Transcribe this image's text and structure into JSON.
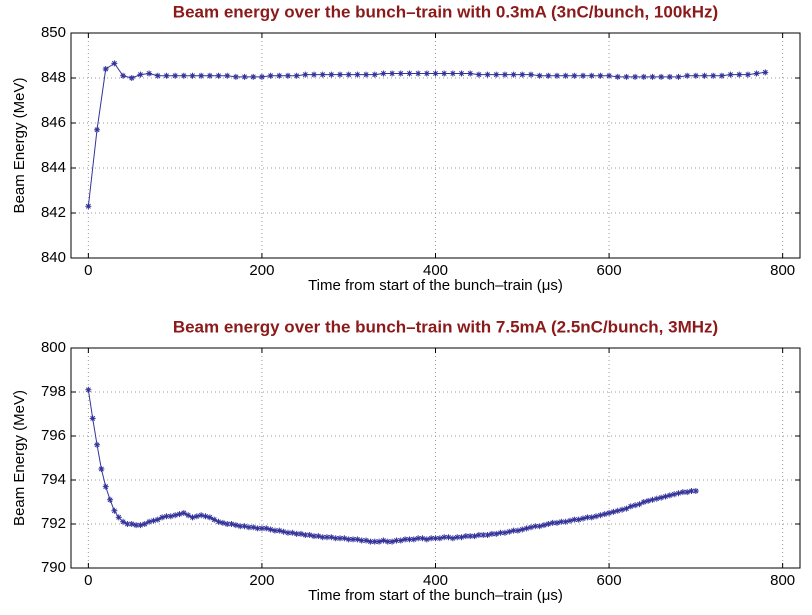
{
  "chart_data": [
    {
      "type": "line",
      "title": "Beam energy over the bunch–train with 0.3mA (3nC/bunch, 100kHz)",
      "xlabel": "Time from start of the bunch–train (μs)",
      "ylabel": "Beam Energy (MeV)",
      "xlim": [
        -20,
        820
      ],
      "xticks": [
        0,
        200,
        400,
        600,
        800
      ],
      "ylim": [
        840,
        850
      ],
      "yticks": [
        840,
        842,
        844,
        846,
        848,
        850
      ],
      "grid": true,
      "series": [
        {
          "name": "0.3mA",
          "color": "#33339a",
          "x": [
            0,
            10,
            20,
            30,
            40,
            50,
            60,
            70,
            80,
            90,
            100,
            110,
            120,
            130,
            140,
            150,
            160,
            170,
            180,
            190,
            200,
            210,
            220,
            230,
            240,
            250,
            260,
            270,
            280,
            290,
            300,
            310,
            320,
            330,
            340,
            350,
            360,
            370,
            380,
            390,
            400,
            410,
            420,
            430,
            440,
            450,
            460,
            470,
            480,
            490,
            500,
            510,
            520,
            530,
            540,
            550,
            560,
            570,
            580,
            590,
            600,
            610,
            620,
            630,
            640,
            650,
            660,
            670,
            680,
            690,
            700,
            710,
            720,
            730,
            740,
            750,
            760,
            770,
            780
          ],
          "values": [
            842.3,
            845.7,
            848.4,
            848.65,
            848.1,
            848.0,
            848.15,
            848.2,
            848.1,
            848.1,
            848.1,
            848.1,
            848.1,
            848.1,
            848.1,
            848.1,
            848.1,
            848.05,
            848.05,
            848.05,
            848.05,
            848.1,
            848.1,
            848.1,
            848.1,
            848.15,
            848.15,
            848.15,
            848.15,
            848.15,
            848.15,
            848.15,
            848.15,
            848.15,
            848.2,
            848.2,
            848.2,
            848.2,
            848.2,
            848.2,
            848.2,
            848.2,
            848.2,
            848.2,
            848.2,
            848.15,
            848.15,
            848.15,
            848.15,
            848.15,
            848.15,
            848.15,
            848.1,
            848.1,
            848.1,
            848.1,
            848.1,
            848.1,
            848.1,
            848.1,
            848.1,
            848.05,
            848.05,
            848.05,
            848.05,
            848.05,
            848.05,
            848.05,
            848.05,
            848.1,
            848.1,
            848.1,
            848.1,
            848.1,
            848.15,
            848.15,
            848.15,
            848.2,
            848.25
          ]
        }
      ]
    },
    {
      "type": "line",
      "title": "Beam energy over the bunch–train with 7.5mA (2.5nC/bunch, 3MHz)",
      "xlabel": "Time from start of the bunch–train (μs)",
      "ylabel": "Beam Energy (MeV)",
      "xlim": [
        -20,
        820
      ],
      "xticks": [
        0,
        200,
        400,
        600,
        800
      ],
      "ylim": [
        790,
        800
      ],
      "yticks": [
        790,
        792,
        794,
        796,
        798,
        800
      ],
      "grid": true,
      "series": [
        {
          "name": "7.5mA",
          "color": "#33339a",
          "x": [
            0,
            5,
            10,
            15,
            20,
            25,
            30,
            35,
            40,
            45,
            50,
            55,
            60,
            65,
            70,
            75,
            80,
            85,
            90,
            95,
            100,
            105,
            110,
            115,
            120,
            125,
            130,
            135,
            140,
            145,
            150,
            155,
            160,
            165,
            170,
            175,
            180,
            185,
            190,
            195,
            200,
            205,
            210,
            215,
            220,
            225,
            230,
            235,
            240,
            245,
            250,
            255,
            260,
            265,
            270,
            275,
            280,
            285,
            290,
            295,
            300,
            305,
            310,
            315,
            320,
            325,
            330,
            335,
            340,
            345,
            350,
            355,
            360,
            365,
            370,
            375,
            380,
            385,
            390,
            395,
            400,
            405,
            410,
            415,
            420,
            425,
            430,
            435,
            440,
            445,
            450,
            455,
            460,
            465,
            470,
            475,
            480,
            485,
            490,
            495,
            500,
            505,
            510,
            515,
            520,
            525,
            530,
            535,
            540,
            545,
            550,
            555,
            560,
            565,
            570,
            575,
            580,
            585,
            590,
            595,
            600,
            605,
            610,
            615,
            620,
            625,
            630,
            635,
            640,
            645,
            650,
            655,
            660,
            665,
            670,
            675,
            680,
            685,
            690,
            695,
            700
          ],
          "values": [
            798.1,
            796.8,
            795.6,
            794.5,
            793.7,
            793.1,
            792.6,
            792.3,
            792.1,
            792.0,
            792.0,
            791.95,
            791.95,
            792.0,
            792.1,
            792.15,
            792.2,
            792.3,
            792.35,
            792.35,
            792.4,
            792.45,
            792.5,
            792.4,
            792.3,
            792.35,
            792.4,
            792.35,
            792.3,
            792.2,
            792.1,
            792.05,
            792.0,
            792.0,
            791.95,
            791.9,
            791.9,
            791.85,
            791.85,
            791.8,
            791.8,
            791.8,
            791.75,
            791.7,
            791.7,
            791.65,
            791.6,
            791.6,
            791.55,
            791.55,
            791.5,
            791.5,
            791.45,
            791.45,
            791.4,
            791.4,
            791.4,
            791.35,
            791.35,
            791.35,
            791.3,
            791.3,
            791.3,
            791.25,
            791.25,
            791.2,
            791.2,
            791.2,
            791.25,
            791.2,
            791.2,
            791.25,
            791.25,
            791.3,
            791.3,
            791.3,
            791.35,
            791.35,
            791.3,
            791.35,
            791.35,
            791.35,
            791.4,
            791.4,
            791.35,
            791.4,
            791.4,
            791.45,
            791.45,
            791.45,
            791.5,
            791.5,
            791.5,
            791.55,
            791.55,
            791.6,
            791.6,
            791.65,
            791.7,
            791.7,
            791.75,
            791.8,
            791.85,
            791.9,
            791.9,
            791.95,
            792.0,
            792.05,
            792.05,
            792.1,
            792.1,
            792.15,
            792.2,
            792.2,
            792.25,
            792.3,
            792.3,
            792.35,
            792.4,
            792.45,
            792.5,
            792.55,
            792.6,
            792.65,
            792.7,
            792.8,
            792.85,
            792.9,
            793.0,
            793.05,
            793.1,
            793.15,
            793.2,
            793.25,
            793.3,
            793.35,
            793.4,
            793.45,
            793.45,
            793.5,
            793.5
          ]
        }
      ]
    }
  ]
}
